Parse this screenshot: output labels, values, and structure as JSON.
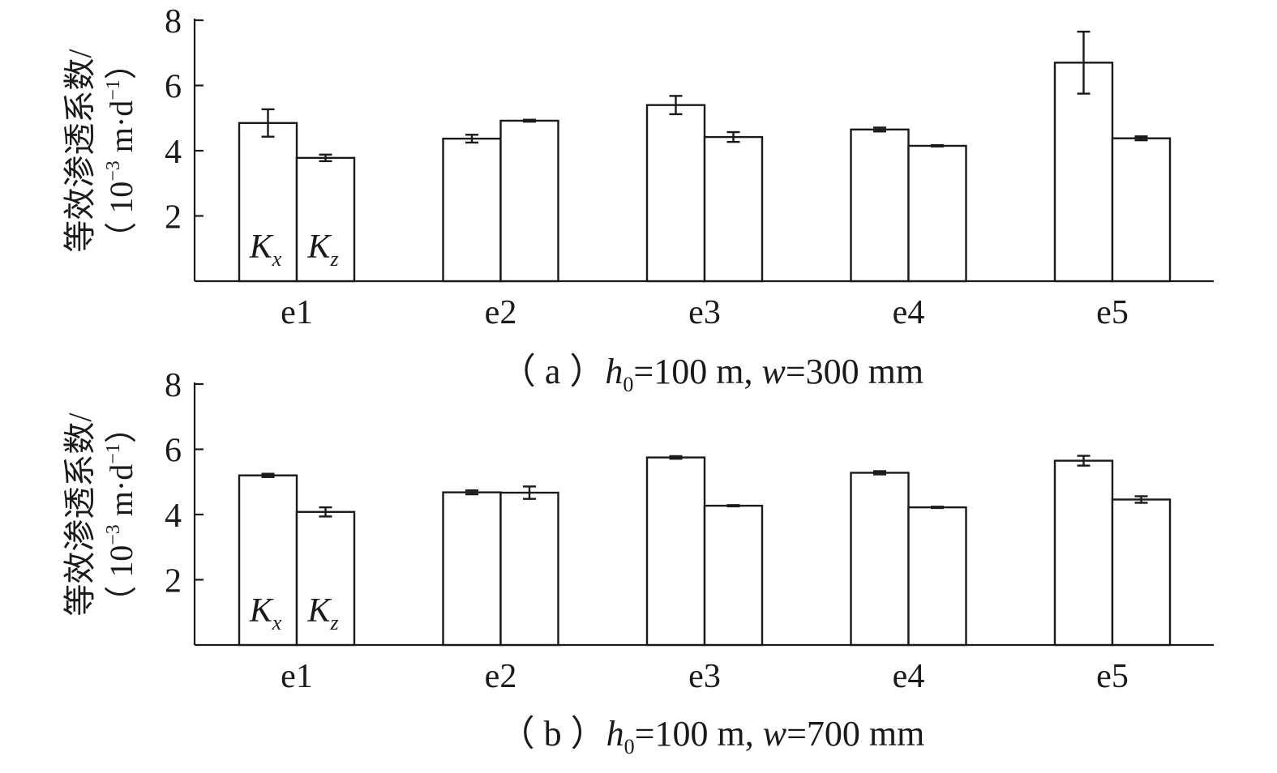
{
  "chart_data": [
    {
      "type": "bar",
      "caption_prefix": "（ a ）",
      "caption_h": "h",
      "caption_h_sub": "0",
      "caption_h_value": "=100 m, ",
      "caption_w": "w",
      "caption_w_value": "=300 mm",
      "ylabel_cn": "等效渗透系数/",
      "ylabel_unit_open": "（ 10",
      "ylabel_unit_exp": "−3",
      "ylabel_unit_mid": " m·d",
      "ylabel_unit_exp2": "−1",
      "ylabel_unit_close": "）",
      "categories": [
        "e1",
        "e2",
        "e3",
        "e4",
        "e5"
      ],
      "yticks": [
        "2",
        "4",
        "6",
        "8"
      ],
      "ylim": [
        0,
        8
      ],
      "series": [
        {
          "name": "K",
          "sub": "x",
          "values": [
            4.85,
            4.37,
            5.4,
            4.65,
            6.7
          ],
          "errors": [
            0.42,
            0.12,
            0.28,
            0.06,
            0.95
          ]
        },
        {
          "name": "K",
          "sub": "z",
          "values": [
            3.78,
            4.92,
            4.42,
            4.15,
            4.38
          ],
          "errors": [
            0.1,
            0.03,
            0.15,
            0.02,
            0.06
          ]
        }
      ]
    },
    {
      "type": "bar",
      "caption_prefix": "（ b ）",
      "caption_h": "h",
      "caption_h_sub": "0",
      "caption_h_value": "=100 m, ",
      "caption_w": "w",
      "caption_w_value": "=700 mm",
      "ylabel_cn": "等效渗透系数/",
      "ylabel_unit_open": "（ 10",
      "ylabel_unit_exp": "−3",
      "ylabel_unit_mid": " m·d",
      "ylabel_unit_exp2": "−1",
      "ylabel_unit_close": "）",
      "categories": [
        "e1",
        "e2",
        "e3",
        "e4",
        "e5"
      ],
      "yticks": [
        "2",
        "4",
        "6",
        "8"
      ],
      "ylim": [
        0,
        8
      ],
      "series": [
        {
          "name": "K",
          "sub": "x",
          "values": [
            5.2,
            4.68,
            5.75,
            5.28,
            5.65
          ],
          "errors": [
            0.05,
            0.06,
            0.04,
            0.05,
            0.15
          ]
        },
        {
          "name": "K",
          "sub": "z",
          "values": [
            4.08,
            4.67,
            4.27,
            4.22,
            4.46
          ],
          "errors": [
            0.14,
            0.19,
            0.02,
            0.02,
            0.1
          ]
        }
      ]
    }
  ]
}
